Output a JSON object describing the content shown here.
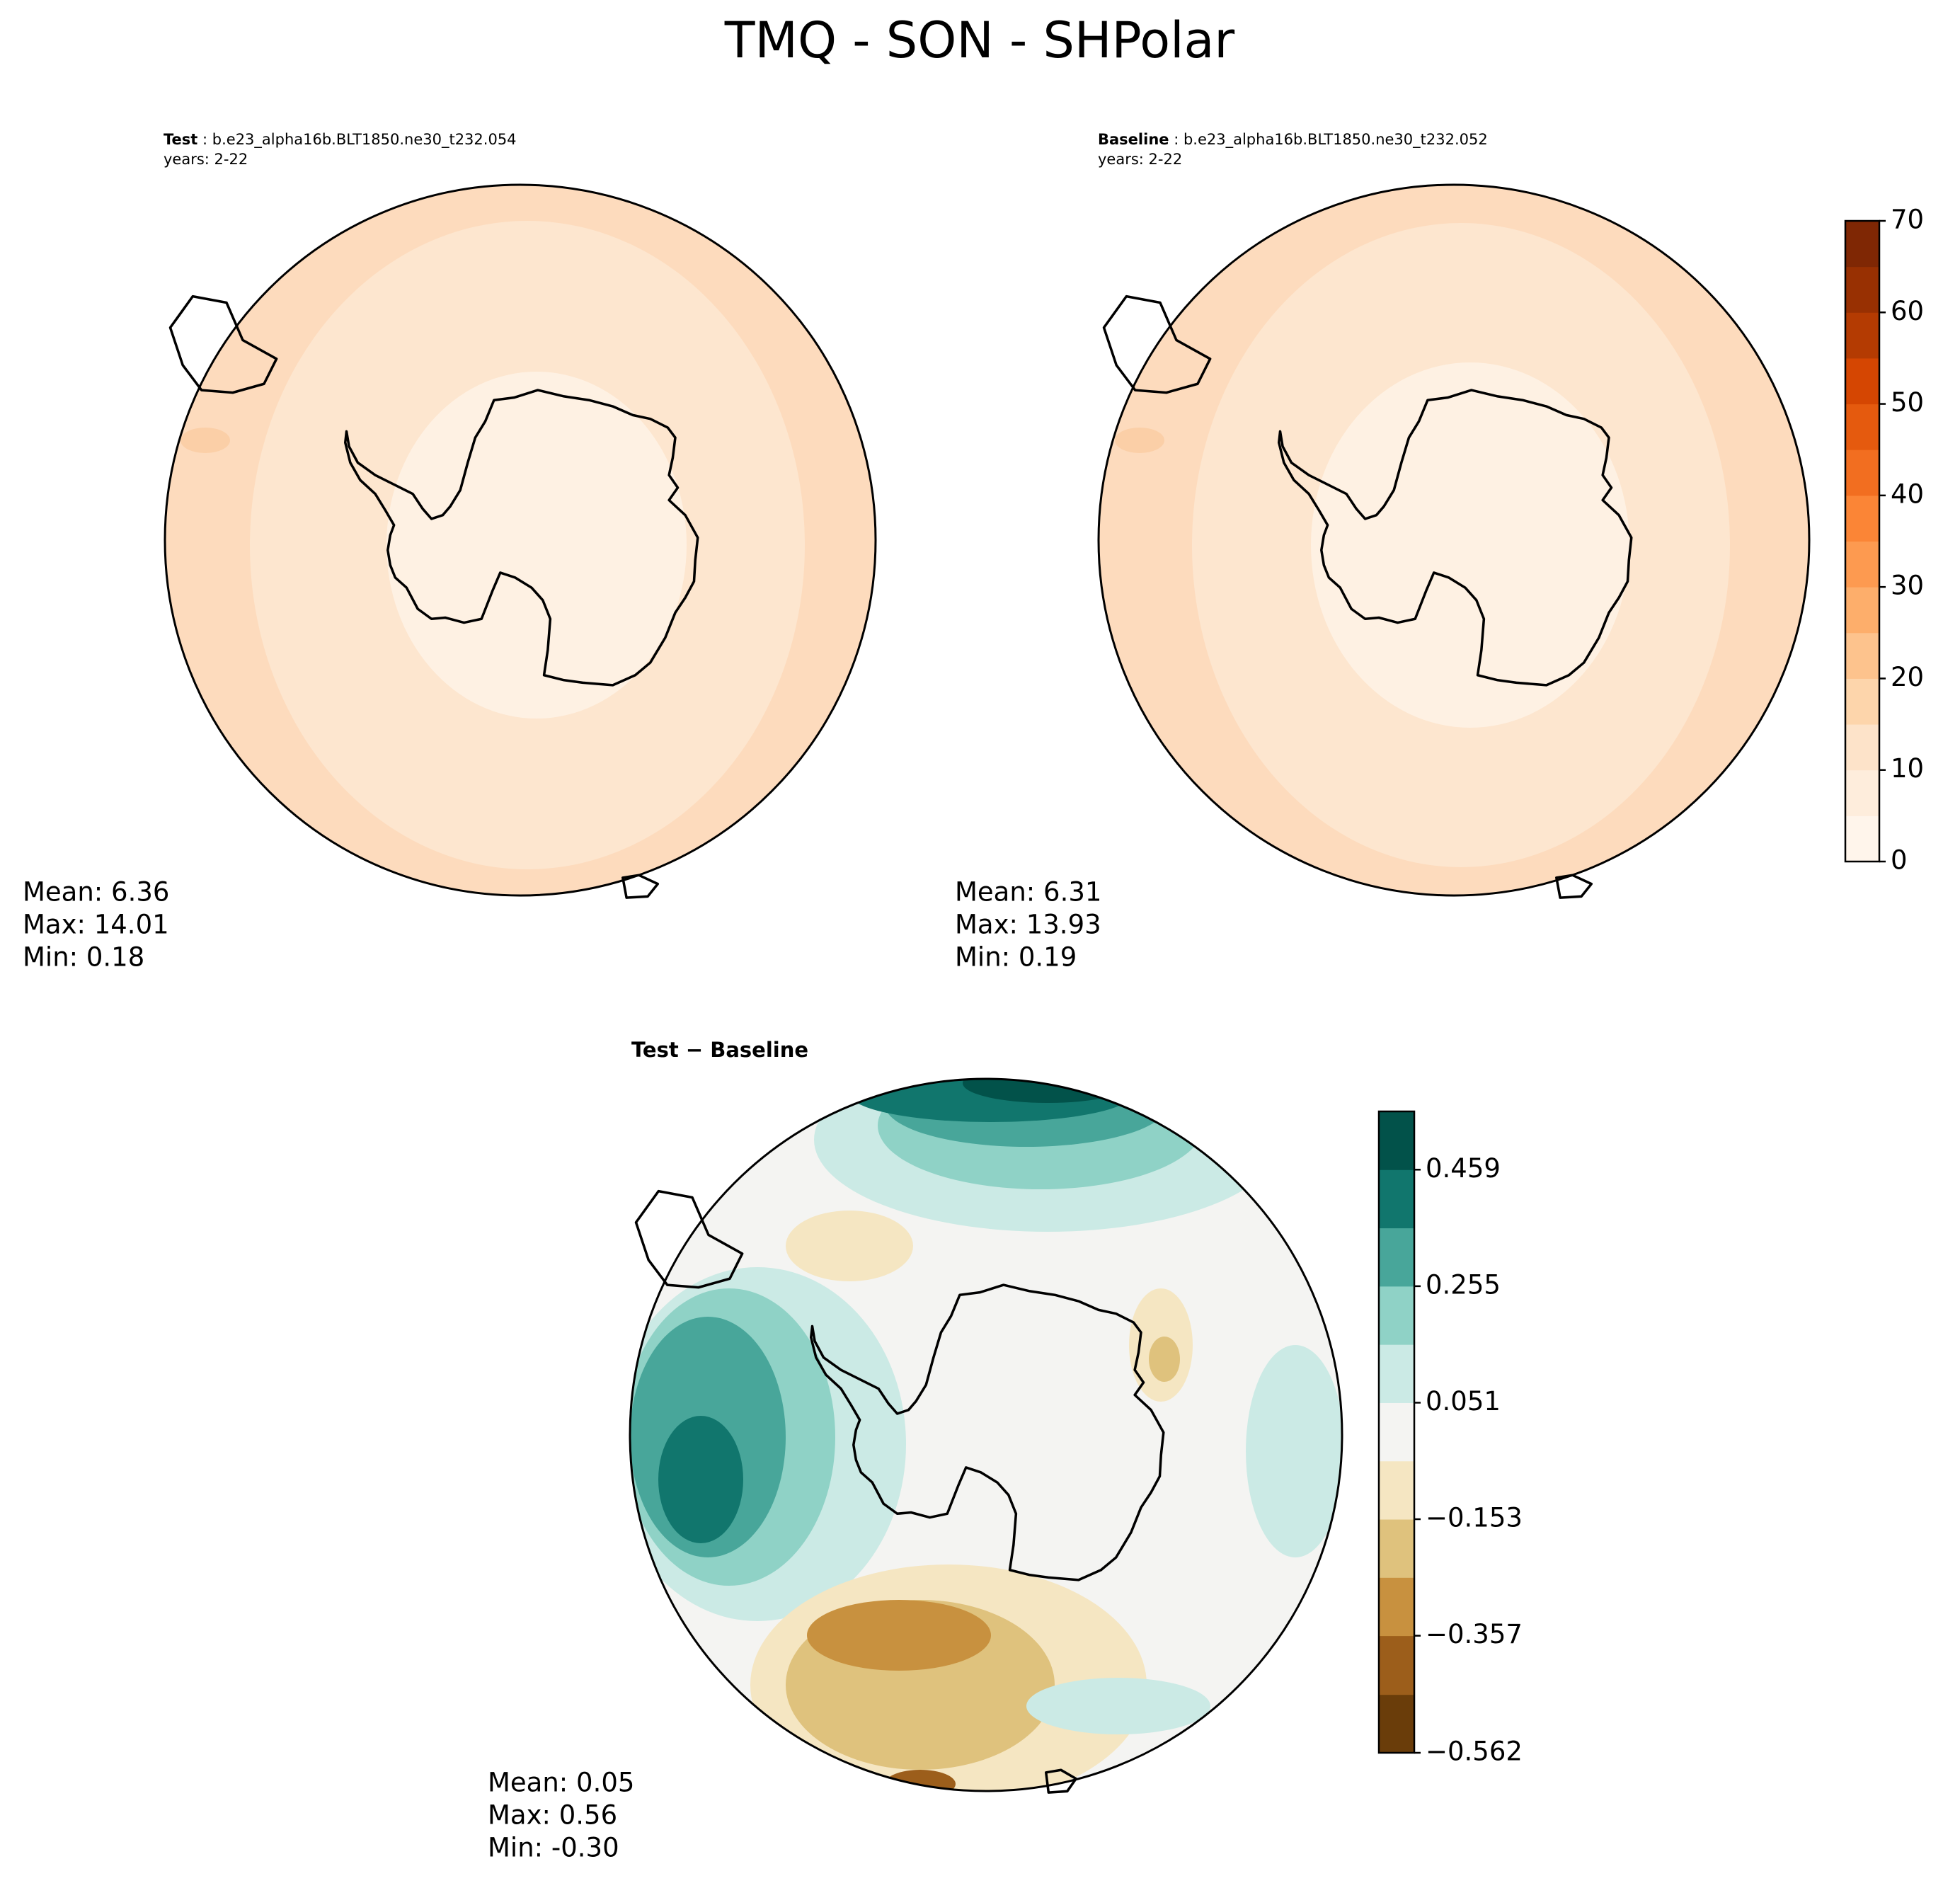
{
  "chart_data": {
    "type": "contour-map",
    "title": "TMQ - SON - SHPolar",
    "panels": [
      {
        "name": "Test",
        "label": ": b.e23_alpha16b.BLT1850.ne30_t232.054",
        "years": "years: 2-22",
        "stats": [
          "Mean:  6.36",
          "Max: 14.01",
          "Min:  0.18"
        ]
      },
      {
        "name": "Baseline",
        "label": ": b.e23_alpha16b.BLT1850.ne30_t232.052",
        "years": "years: 2-22",
        "stats": [
          "Mean:  6.31",
          "Max: 13.93",
          "Min:  0.19"
        ]
      },
      {
        "name": "Test − Baseline",
        "stats": [
          "Mean:  0.05",
          "Max:  0.56",
          "Min: -0.30"
        ]
      }
    ],
    "colorbars": [
      {
        "ylim": [
          0,
          70
        ],
        "yticks": [
          0,
          10,
          20,
          30,
          40,
          50,
          60,
          70
        ],
        "levels": [
          0,
          5,
          10,
          15,
          20,
          25,
          30,
          35,
          40,
          45,
          50,
          55,
          60,
          65,
          70
        ],
        "colors": [
          "#fff5eb",
          "#feeddc",
          "#fde3c9",
          "#fdd5ab",
          "#fdc38d",
          "#fdae6b",
          "#fd9a50",
          "#fb8536",
          "#f26e20",
          "#e55a0e",
          "#d54602",
          "#b43b02",
          "#983002",
          "#7f2704"
        ]
      },
      {
        "ylim": [
          -0.562,
          0.561
        ],
        "yticks": [
          {
            "value": -0.562,
            "label": "−0.562"
          },
          {
            "value": -0.357,
            "label": "−0.357"
          },
          {
            "value": -0.153,
            "label": "−0.153"
          },
          0.051,
          0.255,
          0.459
        ],
        "levels": [
          -0.562,
          -0.46,
          -0.357,
          -0.255,
          -0.153,
          -0.051,
          0.051,
          0.153,
          0.255,
          0.357,
          0.459,
          0.561
        ],
        "colors": [
          "#6a3d0a",
          "#9c5e1b",
          "#c8913f",
          "#dfc27d",
          "#f5e6c2",
          "#f4f4f2",
          "#cbeae5",
          "#8fd2c6",
          "#48a69a",
          "#11766d",
          "#02524a"
        ]
      }
    ]
  }
}
